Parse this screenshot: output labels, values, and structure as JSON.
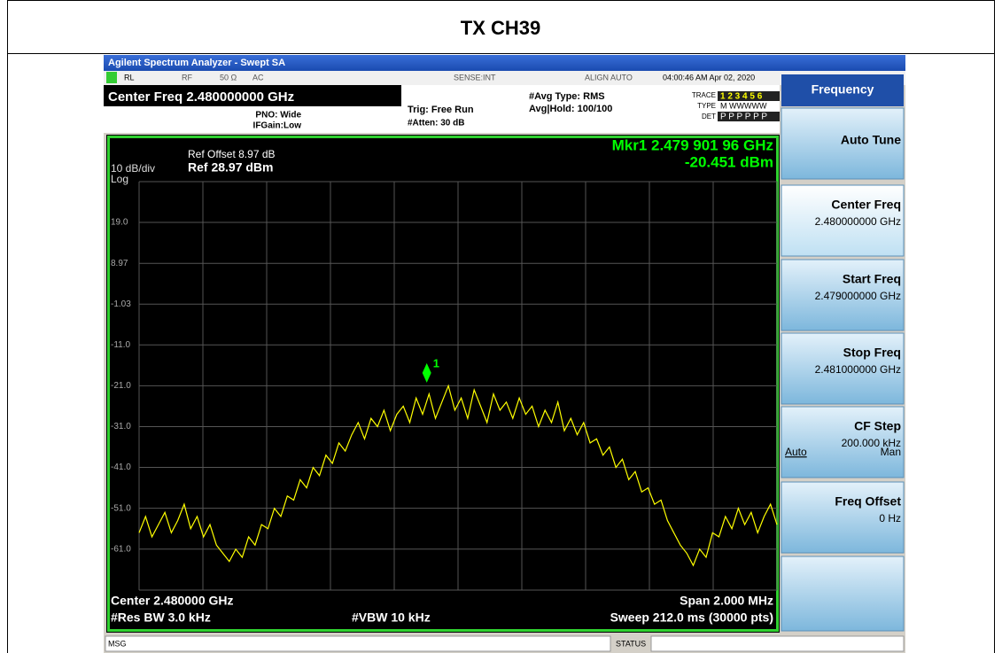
{
  "title": "TX CH39",
  "window_title": "Agilent Spectrum Analyzer - Swept SA",
  "status_row": {
    "rl": "RL",
    "rf": "RF",
    "impedance": "50 Ω",
    "coupling": "AC",
    "sense": "SENSE:INT",
    "align": "ALIGN AUTO",
    "time": "04:00:46 AM Apr 02, 2020"
  },
  "header": {
    "center_freq": "Center Freq 2.480000000 GHz",
    "pno": "PNO: Wide",
    "ifgain": "IFGain:Low",
    "trig": "Trig: Free Run",
    "atten": "#Atten: 30 dB",
    "avg_type": "#Avg Type: RMS",
    "avg_hold": "Avg|Hold: 100/100",
    "trace_label": "TRACE",
    "trace_nums": "1 2 3 4 5 6",
    "type_label": "TYPE",
    "type_vals": "M WWWWW",
    "det_label": "DET",
    "det_vals": "P P P P P P"
  },
  "chart_data": {
    "type": "line",
    "ref_offset": "Ref Offset 8.97 dB",
    "scale": "10 dB/div",
    "ref_level": "Ref 28.97 dBm",
    "scale_type": "Log",
    "ylim": [
      -71.03,
      28.97
    ],
    "yticks": [
      {
        "value": 19,
        "label": "19.0"
      },
      8.97,
      -1.03,
      {
        "value": -11,
        "label": "-11.0"
      },
      {
        "value": -21,
        "label": "-21.0"
      },
      {
        "value": -31,
        "label": "-31.0"
      },
      {
        "value": -41,
        "label": "-41.0"
      },
      {
        "value": -51,
        "label": "-51.0"
      },
      {
        "value": -61,
        "label": "-61.0"
      }
    ],
    "xlim": [
      2.479,
      2.481
    ],
    "series": [
      {
        "name": "Trace 1",
        "color": "#ffff00",
        "values": [
          -57,
          -53,
          -58,
          -55,
          -52,
          -57,
          -54,
          -50,
          -56,
          -53,
          -58,
          -55,
          -60,
          -62,
          -64,
          -61,
          -63,
          -58,
          -60,
          -55,
          -56,
          -51,
          -53,
          -48,
          -49,
          -44,
          -46,
          -41,
          -43,
          -38,
          -40,
          -35,
          -37,
          -33,
          -30,
          -34,
          -29,
          -31,
          -27,
          -32,
          -28,
          -26,
          -30,
          -24,
          -28,
          -23,
          -29,
          -25,
          -21,
          -27,
          -24,
          -29,
          -22,
          -26,
          -30,
          -23,
          -27,
          -25,
          -29,
          -24,
          -28,
          -26,
          -31,
          -27,
          -30,
          -25,
          -32,
          -29,
          -33,
          -30,
          -35,
          -34,
          -38,
          -36,
          -41,
          -39,
          -44,
          -42,
          -47,
          -46,
          -50,
          -49,
          -54,
          -57,
          -60,
          -62,
          -65,
          -61,
          -63,
          -57,
          -58,
          -53,
          -56,
          -51,
          -55,
          -52,
          -57,
          -53,
          -50,
          -55
        ]
      }
    ],
    "marker": {
      "name": "1",
      "readout": "Mkr1 2.479 901 96 GHz",
      "level": "-20.451 dBm",
      "x": 2.47990196,
      "y": -20.451,
      "color": "#00ff00"
    },
    "footer": {
      "center": "Center 2.480000 GHz",
      "span": "Span 2.000 MHz",
      "rbw": "#Res BW 3.0 kHz",
      "vbw": "#VBW 10 kHz",
      "sweep": "Sweep  212.0 ms (30000 pts)"
    }
  },
  "softkeys": {
    "menu": "Frequency",
    "keys": [
      {
        "label": "Auto Tune"
      },
      {
        "label": "Center Freq",
        "value": "2.480000000 GHz"
      },
      {
        "label": "Start Freq",
        "value": "2.479000000 GHz"
      },
      {
        "label": "Stop Freq",
        "value": "2.481000000 GHz"
      },
      {
        "label": "CF Step",
        "value": "200.000 kHz",
        "auto": "Auto",
        "man": "Man"
      },
      {
        "label": "Freq Offset",
        "value": "0 Hz"
      }
    ]
  },
  "status_bar": {
    "msg": "MSG",
    "status": "STATUS"
  }
}
